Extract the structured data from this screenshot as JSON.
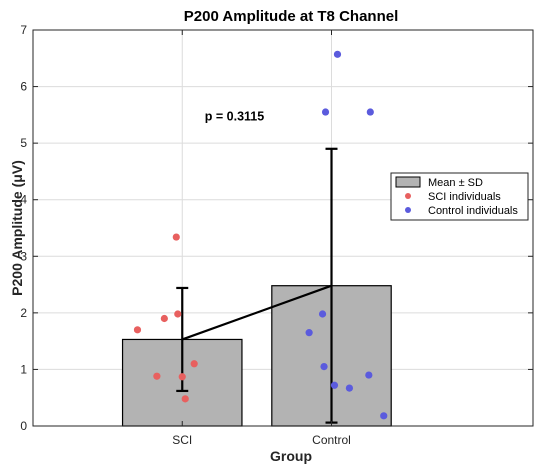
{
  "chart_data": {
    "type": "bar",
    "title": "P200 Amplitude at T8 Channel",
    "xlabel": "Group",
    "ylabel": "P200 Amplitude (μV)",
    "ylim": [
      0,
      7
    ],
    "yticks": [
      "0",
      "1",
      "2",
      "3",
      "4",
      "5",
      "6",
      "7"
    ],
    "grid": true,
    "categories": [
      "SCI",
      "Control"
    ],
    "series": [
      {
        "name": "Mean ± SD",
        "values": [
          1.53,
          2.48
        ],
        "sd": [
          0.91,
          2.42
        ],
        "color": "#b3b3b3"
      }
    ],
    "mean_line": [
      1.53,
      2.48
    ],
    "individuals": [
      {
        "name": "SCI individuals",
        "category": "SCI",
        "color": "#e8605f",
        "points": [
          {
            "x": 0.7,
            "y": 1.7
          },
          {
            "x": 0.88,
            "y": 1.9
          },
          {
            "x": 0.97,
            "y": 1.98
          },
          {
            "x": 0.96,
            "y": 3.34
          },
          {
            "x": 0.83,
            "y": 0.88
          },
          {
            "x": 1.0,
            "y": 0.87
          },
          {
            "x": 1.08,
            "y": 1.1
          },
          {
            "x": 1.02,
            "y": 0.48
          }
        ]
      },
      {
        "name": "Control individuals",
        "category": "Control",
        "color": "#5b5bdd",
        "points": [
          {
            "x": 2.04,
            "y": 6.57
          },
          {
            "x": 1.96,
            "y": 5.55
          },
          {
            "x": 2.26,
            "y": 5.55
          },
          {
            "x": 1.94,
            "y": 1.98
          },
          {
            "x": 1.85,
            "y": 1.65
          },
          {
            "x": 1.95,
            "y": 1.05
          },
          {
            "x": 2.02,
            "y": 0.72
          },
          {
            "x": 2.12,
            "y": 0.67
          },
          {
            "x": 2.25,
            "y": 0.9
          },
          {
            "x": 2.35,
            "y": 0.18
          }
        ]
      }
    ],
    "annotations": [
      {
        "text": "p = 0.3115",
        "x": 1.35,
        "y": 5.4
      }
    ],
    "legend": {
      "placement": "right",
      "entries": [
        "Mean ± SD",
        "SCI individuals",
        "Control individuals"
      ]
    }
  }
}
